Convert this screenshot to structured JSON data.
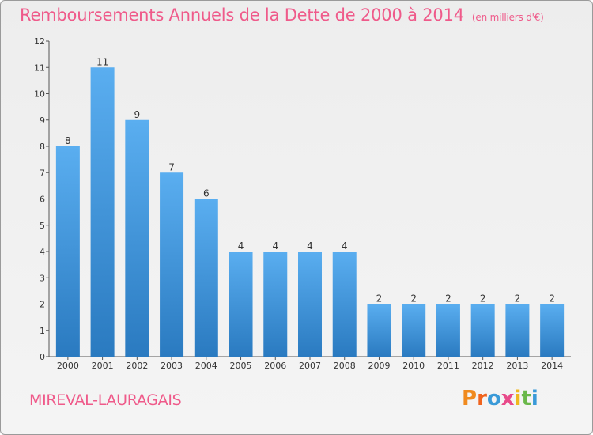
{
  "header": {
    "title": "Remboursements Annuels de la Dette de 2000 à 2014",
    "unit": "(en milliers d'€)"
  },
  "footer": {
    "city": "MIREVAL-LAURAGAIS",
    "logo_text": "Proxiti"
  },
  "colors": {
    "title": "#ef5a8a",
    "bar_top": "#5aaef0",
    "bar_bottom": "#2a7ac0",
    "logo": [
      "#f08a1e",
      "#f0641e",
      "#3a9ad8",
      "#e84a8a",
      "#f0b81e",
      "#6ab84a",
      "#3a9ad8"
    ]
  },
  "chart_data": {
    "type": "bar",
    "categories": [
      "2000",
      "2001",
      "2002",
      "2003",
      "2004",
      "2005",
      "2006",
      "2007",
      "2008",
      "2009",
      "2010",
      "2011",
      "2012",
      "2013",
      "2014"
    ],
    "values": [
      8,
      11,
      9,
      7,
      6,
      4,
      4,
      4,
      4,
      2,
      2,
      2,
      2,
      2,
      2
    ],
    "ylim": [
      0,
      12
    ],
    "yticks": [
      0,
      1,
      2,
      3,
      4,
      5,
      6,
      7,
      8,
      9,
      10,
      11,
      12
    ],
    "grid": false
  }
}
